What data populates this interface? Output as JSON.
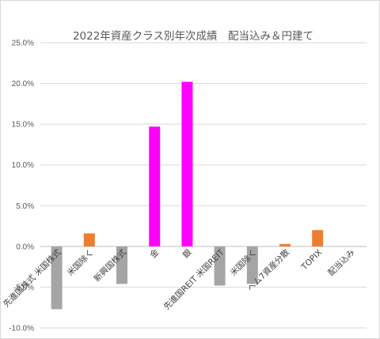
{
  "chart_data": {
    "type": "bar",
    "title": "2022年資産クラス別年次成績　配当込み＆円建て",
    "xlabel": "",
    "ylabel": "",
    "ylim": [
      -10,
      25
    ],
    "yticks": [
      -10,
      -5,
      0,
      5,
      10,
      15,
      20,
      25
    ],
    "ytick_labels": [
      "-10.0%",
      "-5.0%",
      "0.0%",
      "5.0%",
      "10.0%",
      "15.0%",
      "20.0%",
      "25.0%"
    ],
    "grid": true,
    "legend": "none",
    "categories": [
      "先進国株式 米国株式",
      "米国除く",
      "新興国株式",
      "金",
      "銀",
      "先進国REIT 米国REIT",
      "米国除く",
      "ヘム7資産分散",
      "TOPIX",
      "配当込み"
    ],
    "values": [
      -7.7,
      1.6,
      -4.6,
      14.7,
      20.2,
      -4.8,
      -4.6,
      0.3,
      2.0,
      0
    ],
    "colors": [
      "#a5a5a5",
      "#ed7d31",
      "#a5a5a5",
      "#ff00ff",
      "#ff00ff",
      "#a5a5a5",
      "#a5a5a5",
      "#ed7d31",
      "#ed7d31",
      "#ed7d31"
    ]
  }
}
